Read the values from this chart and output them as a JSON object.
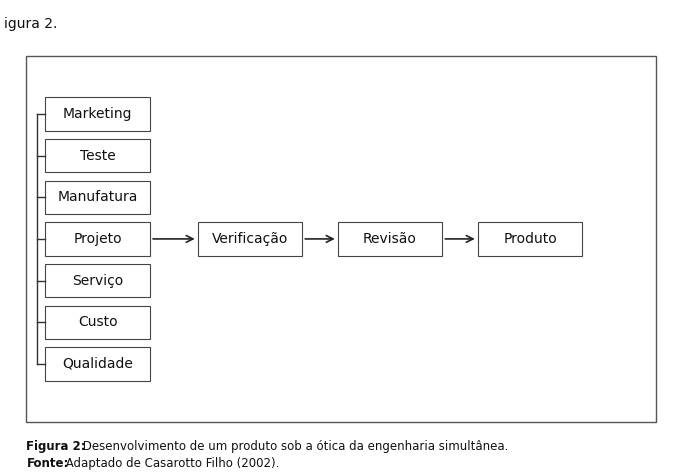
{
  "background_color": "#ffffff",
  "left_boxes": [
    {
      "label": "Marketing"
    },
    {
      "label": "Teste"
    },
    {
      "label": "Manufatura"
    },
    {
      "label": "Projeto"
    },
    {
      "label": "Serviço"
    },
    {
      "label": "Custo"
    },
    {
      "label": "Qualidade"
    }
  ],
  "right_boxes": [
    {
      "label": "Verificação"
    },
    {
      "label": "Revisão"
    },
    {
      "label": "Produto"
    }
  ],
  "caption_bold": "Figura 2:",
  "caption_normal": " Desenvolvimento de um produto sob a ótica da engenharia simultânea.",
  "source_bold": "Fonte:",
  "source_normal": " Adaptado de Casarotto Filho (2002).",
  "header_text": "igura 2.",
  "box_color": "#ffffff",
  "box_edge_color": "#444444",
  "text_color": "#111111",
  "font_size": 10,
  "caption_font_size": 8.5,
  "projeto_idx": 3
}
